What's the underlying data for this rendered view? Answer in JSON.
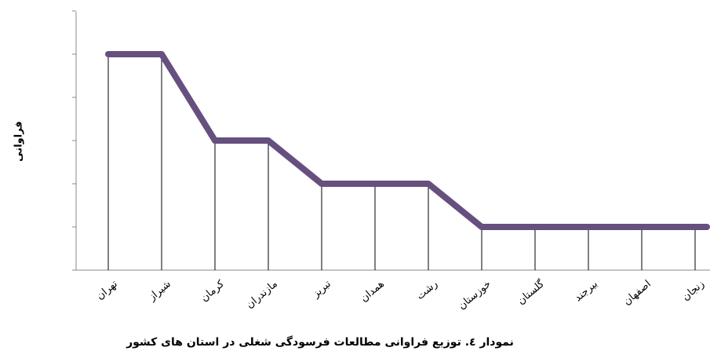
{
  "chart_data": {
    "type": "line",
    "title": "نمودار ٤. توزیع فراوانی مطالعات فرسودگی شغلی در استان های کشور",
    "y_label": "فراوانی",
    "categories": [
      "تهران",
      "شیراز",
      "کرمان",
      "مازندران",
      "تبریز",
      "همدان",
      "رشت",
      "خوزستان",
      "گلستان",
      "بیرجند",
      "اصفهان",
      "زنجان"
    ],
    "values": [
      5,
      5,
      3,
      3,
      2,
      2,
      2,
      1,
      1,
      1,
      1,
      1
    ],
    "color": "#66507f",
    "ylim": [
      0,
      6
    ],
    "yticks": [
      0,
      1,
      2,
      3,
      4,
      5,
      6
    ],
    "drop_lines": true
  }
}
